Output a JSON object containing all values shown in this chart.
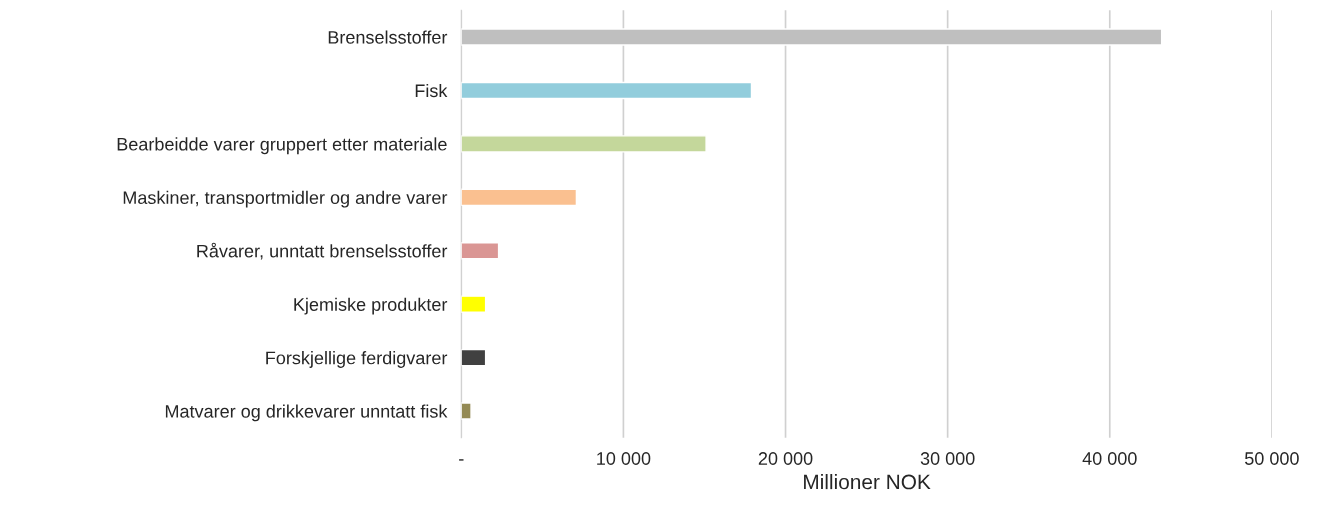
{
  "chart_data": {
    "type": "bar",
    "orientation": "horizontal",
    "xlabel": "Millioner NOK",
    "categories": [
      "Brenselsstoffer",
      "Fisk",
      "Bearbeidde varer gruppert etter materiale",
      "Maskiner, transportmidler og andre varer",
      "Råvarer, unntatt brenselsstoffer",
      "Kjemiske produkter",
      "Forskjellige ferdigvarer",
      "Matvarer og drikkevarer unntatt fisk"
    ],
    "values": [
      43200,
      17900,
      15100,
      7100,
      2300,
      1500,
      1500,
      600
    ],
    "colors": [
      "#bfbfbf",
      "#92cddc",
      "#c4d79b",
      "#fac090",
      "#da9694",
      "#ffff00",
      "#404040",
      "#948a54"
    ],
    "xlim": [
      0,
      50000
    ],
    "xticks": [
      {
        "value": 0,
        "label": "-"
      },
      {
        "value": 10000,
        "label": "10 000"
      },
      {
        "value": 20000,
        "label": "20 000"
      },
      {
        "value": 30000,
        "label": "30 000"
      },
      {
        "value": 40000,
        "label": "40 000"
      },
      {
        "value": 50000,
        "label": "50 000"
      }
    ],
    "grid": "x"
  }
}
